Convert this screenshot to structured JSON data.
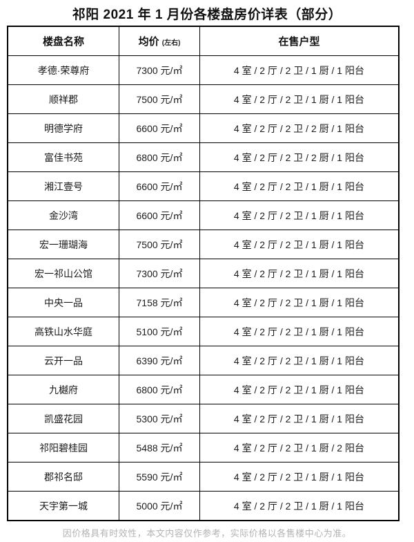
{
  "page": {
    "title": "祁阳 2021 年 1 月份各楼盘房价详表（部分）",
    "footer": "因价格具有时效性，本文内容仅作参考，实际价格以各售楼中心为准。"
  },
  "colors": {
    "border": "#000000",
    "text": "#1a1a1a",
    "footer_text": "#b3b3b3"
  },
  "table": {
    "headers": {
      "name": "楼盘名称",
      "price": "均价",
      "price_note": "(左右)",
      "layout": "在售户型"
    },
    "rows": [
      {
        "name": "孝德·荣尊府",
        "price": "7300 元/㎡",
        "layout": "4 室 / 2 厅 / 2 卫 / 1 厨 / 1 阳台"
      },
      {
        "name": "顺祥郡",
        "price": "7500 元/㎡",
        "layout": "4 室 / 2 厅 / 2 卫 / 1 厨 / 1 阳台"
      },
      {
        "name": "明德学府",
        "price": "6600 元/㎡",
        "layout": "4 室 / 2 厅 / 2 卫 / 2 厨 / 1 阳台"
      },
      {
        "name": "富佳书苑",
        "price": "6800 元/㎡",
        "layout": "4 室 / 2 厅 / 2 卫 / 2 厨 / 1 阳台"
      },
      {
        "name": "湘江壹号",
        "price": "6600 元/㎡",
        "layout": "4 室 / 2 厅 / 2 卫 / 1 厨 / 1 阳台"
      },
      {
        "name": "金沙湾",
        "price": "6600 元/㎡",
        "layout": "4 室 / 2 厅 / 2 卫 / 1 厨 / 1 阳台"
      },
      {
        "name": "宏一珊瑚海",
        "price": "7500 元/㎡",
        "layout": "4 室 / 2 厅 / 2 卫 / 1 厨 / 1 阳台"
      },
      {
        "name": "宏一祁山公馆",
        "price": "7300 元/㎡",
        "layout": "4 室 / 2 厅 / 2 卫 / 1 厨 / 1 阳台"
      },
      {
        "name": "中央一品",
        "price": "7158 元/㎡",
        "layout": "4 室 / 2 厅 / 2 卫 / 1 厨 / 1 阳台"
      },
      {
        "name": "高铁山水华庭",
        "price": "5100 元/㎡",
        "layout": "4 室 / 2 厅 / 2 卫 / 1 厨 / 1 阳台"
      },
      {
        "name": "云开一品",
        "price": "6390 元/㎡",
        "layout": "4 室 / 2 厅 / 2 卫 / 1 厨 / 1 阳台"
      },
      {
        "name": "九樾府",
        "price": "6800 元/㎡",
        "layout": "4 室 / 2 厅 / 2 卫 / 1 厨 / 1 阳台"
      },
      {
        "name": "凯盛花园",
        "price": "5300 元/㎡",
        "layout": "4 室 / 2 厅 / 2 卫 / 1 厨 / 1 阳台"
      },
      {
        "name": "祁阳碧桂园",
        "price": "5488 元/㎡",
        "layout": "4 室 / 2 厅 / 2 卫 / 1 厨 / 2 阳台"
      },
      {
        "name": "郡祁名邸",
        "price": "5590 元/㎡",
        "layout": "4 室 / 2 厅 / 2 卫 / 1 厨 / 1 阳台"
      },
      {
        "name": "天宇第一城",
        "price": "5000 元/㎡",
        "layout": "4 室 / 2 厅 / 2 卫 / 1 厨 / 1 阳台"
      }
    ]
  }
}
